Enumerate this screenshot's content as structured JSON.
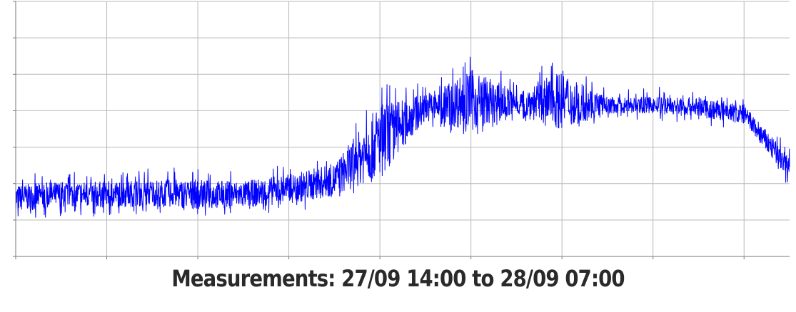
{
  "caption": "Measurements: 27/09 14:00 to 28/09 07:00",
  "chart_data": {
    "type": "line",
    "title": "",
    "xlabel": "",
    "ylabel": "",
    "x_range": [
      "27/09 14:00",
      "28/09 07:00"
    ],
    "ylim": [
      0,
      7
    ],
    "grid": true,
    "legend": "none",
    "series_color": "#0000ff",
    "grid_color": "#b8b8b8",
    "series": [
      {
        "name": "",
        "envelope": [
          {
            "x": "27/09 14:00",
            "low": 1.2,
            "mid": 1.6,
            "high": 2.0
          },
          {
            "x": "27/09 15:00",
            "low": 1.3,
            "mid": 1.7,
            "high": 2.1
          },
          {
            "x": "27/09 16:00",
            "low": 1.3,
            "mid": 1.7,
            "high": 2.1
          },
          {
            "x": "27/09 17:00",
            "low": 1.4,
            "mid": 1.75,
            "high": 2.2
          },
          {
            "x": "27/09 18:00",
            "low": 1.3,
            "mid": 1.7,
            "high": 2.2
          },
          {
            "x": "27/09 19:00",
            "low": 1.3,
            "mid": 1.7,
            "high": 2.1
          },
          {
            "x": "27/09 20:00",
            "low": 1.4,
            "mid": 1.85,
            "high": 2.3
          },
          {
            "x": "27/09 21:00",
            "low": 1.6,
            "mid": 2.1,
            "high": 2.6
          },
          {
            "x": "27/09 22:00",
            "low": 2.3,
            "mid": 3.2,
            "high": 4.5
          },
          {
            "x": "27/09 23:00",
            "low": 3.8,
            "mid": 4.1,
            "high": 4.6
          },
          {
            "x": "28/09 00:00",
            "low": 3.4,
            "mid": 4.3,
            "high": 5.3
          },
          {
            "x": "28/09 01:00",
            "low": 3.9,
            "mid": 4.2,
            "high": 4.6
          },
          {
            "x": "28/09 02:00",
            "low": 3.6,
            "mid": 4.3,
            "high": 5.4
          },
          {
            "x": "28/09 03:00",
            "low": 3.9,
            "mid": 4.15,
            "high": 4.4
          },
          {
            "x": "28/09 04:00",
            "low": 3.9,
            "mid": 4.15,
            "high": 4.4
          },
          {
            "x": "28/09 05:00",
            "low": 3.8,
            "mid": 4.1,
            "high": 4.4
          },
          {
            "x": "28/09 06:00",
            "low": 3.6,
            "mid": 3.9,
            "high": 4.2
          },
          {
            "x": "28/09 07:00",
            "low": 2.1,
            "mid": 2.4,
            "high": 2.8
          }
        ]
      }
    ]
  }
}
